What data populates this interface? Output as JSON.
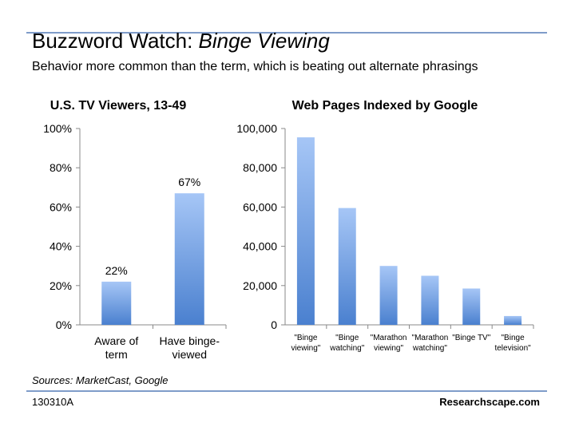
{
  "header": {
    "title_plain": "Buzzword Watch: ",
    "title_italic": "Binge Viewing",
    "subtitle": "Behavior more common than the term, which is beating out alternate phrasings"
  },
  "footer": {
    "sources": "Sources: MarketCast, Google",
    "code": "130310A",
    "brand": "Researchscape.com"
  },
  "colors": {
    "bar_top": "#a6c6f6",
    "bar_bottom": "#4a80cf",
    "rule": "#7f9cc9"
  },
  "chart_data": [
    {
      "type": "bar",
      "title": "U.S. TV Viewers, 13-49",
      "categories": [
        [
          "Aware of",
          "term"
        ],
        [
          "Have binge-",
          "viewed"
        ]
      ],
      "values": [
        22,
        67
      ],
      "data_labels": [
        "22%",
        "67%"
      ],
      "ylim": [
        0,
        100
      ],
      "yticks": [
        0,
        20,
        40,
        60,
        80,
        100
      ],
      "ytick_labels": [
        "0%",
        "20%",
        "40%",
        "60%",
        "80%",
        "100%"
      ],
      "grid": false
    },
    {
      "type": "bar",
      "title": "Web Pages Indexed by Google",
      "categories": [
        [
          "\"Binge",
          "viewing\""
        ],
        [
          "\"Binge",
          "watching\""
        ],
        [
          "\"Marathon",
          "viewing\""
        ],
        [
          "\"Marathon",
          "watching\""
        ],
        [
          "\"Binge TV\""
        ],
        [
          "\"Binge",
          "television\""
        ]
      ],
      "values": [
        95500,
        59500,
        30000,
        25000,
        18500,
        4500
      ],
      "ylim": [
        0,
        100000
      ],
      "yticks": [
        0,
        20000,
        40000,
        60000,
        80000,
        100000
      ],
      "ytick_labels": [
        "0",
        "20,000",
        "40,000",
        "60,000",
        "80,000",
        "100,000"
      ],
      "grid": false
    }
  ]
}
